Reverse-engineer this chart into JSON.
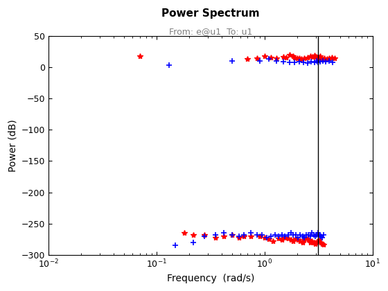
{
  "title": "Power Spectrum",
  "subtitle": "From: e@u1  To: u1",
  "xlabel": "Frequency  (rad/s)",
  "ylabel": "Power (dB)",
  "ylim": [
    -300,
    50
  ],
  "vline_x": 3.14,
  "red_x": [
    0.07,
    0.7,
    0.85,
    1.0,
    1.15,
    1.3,
    1.5,
    1.6,
    1.7,
    1.85,
    1.9,
    2.0,
    2.1,
    2.2,
    2.35,
    2.5,
    2.65,
    2.8,
    2.9,
    3.0,
    3.1,
    3.2,
    3.3,
    3.4,
    3.5,
    3.6,
    3.8,
    4.0,
    4.2,
    4.5,
    0.18,
    0.22,
    0.28,
    0.35,
    0.42,
    0.5,
    0.58,
    0.65,
    0.75,
    0.9,
    1.0,
    1.1,
    1.2,
    1.35,
    1.45,
    1.55,
    1.65,
    1.75,
    1.85,
    1.95,
    2.05,
    2.15,
    2.25,
    2.35,
    2.45,
    2.55,
    2.65,
    2.75,
    2.85,
    2.95,
    3.05,
    3.15,
    3.25,
    3.35,
    3.45,
    3.55
  ],
  "red_y": [
    18,
    13,
    15,
    18,
    16,
    14,
    17,
    16,
    20,
    18,
    16,
    14,
    15,
    13,
    14,
    16,
    18,
    17,
    19,
    17,
    15,
    16,
    18,
    14,
    12,
    15,
    13,
    14,
    16,
    15,
    -265,
    -268,
    -268,
    -272,
    -270,
    -268,
    -272,
    -270,
    -270,
    -270,
    -272,
    -275,
    -278,
    -274,
    -276,
    -272,
    -274,
    -276,
    -278,
    -274,
    -276,
    -278,
    -280,
    -276,
    -274,
    -276,
    -280,
    -278,
    -280,
    -282,
    -280,
    -278,
    -276,
    -280,
    -282,
    -284
  ],
  "blue_x": [
    0.13,
    0.5,
    0.9,
    1.1,
    1.3,
    1.5,
    1.7,
    1.9,
    2.1,
    2.3,
    2.5,
    2.7,
    2.9,
    3.05,
    3.15,
    3.3,
    3.5,
    3.7,
    4.0,
    4.3,
    0.15,
    0.22,
    0.28,
    0.35,
    0.42,
    0.5,
    0.58,
    0.65,
    0.75,
    0.85,
    0.95,
    1.05,
    1.15,
    1.25,
    1.35,
    1.45,
    1.55,
    1.65,
    1.75,
    1.85,
    1.95,
    2.05,
    2.15,
    2.25,
    2.35,
    2.45,
    2.55,
    2.65,
    2.75,
    2.85,
    2.95,
    3.05,
    3.15,
    3.25,
    3.35,
    3.45,
    3.55
  ],
  "blue_y": [
    3,
    10,
    10,
    13,
    10,
    9,
    8,
    8,
    9,
    8,
    7,
    9,
    8,
    10,
    8,
    9,
    10,
    9,
    10,
    8,
    -285,
    -280,
    -270,
    -268,
    -265,
    -268,
    -270,
    -268,
    -265,
    -268,
    -268,
    -272,
    -270,
    -268,
    -270,
    -268,
    -270,
    -268,
    -265,
    -268,
    -268,
    -272,
    -268,
    -270,
    -272,
    -268,
    -268,
    -270,
    -265,
    -268,
    -270,
    -268,
    -265,
    -268,
    -270,
    -272,
    -268
  ],
  "red_color": "#FF0000",
  "blue_color": "#0000FF",
  "vline_color": "#000000",
  "subtitle_color": "#808080",
  "title_fontsize": 11,
  "subtitle_fontsize": 9,
  "label_fontsize": 10,
  "tick_fontsize": 9
}
